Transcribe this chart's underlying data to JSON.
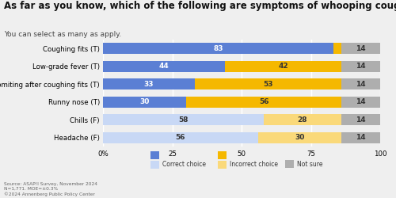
{
  "title": "As far as you know, which of the following are symptoms of whooping cough?",
  "subtitle": "You can select as many as apply.",
  "categories": [
    "Coughing fits (T)",
    "Low-grade fever (T)",
    "Vomiting after coughing fits (T)",
    "Runny nose (T)",
    "Chills (F)",
    "Headache (F)"
  ],
  "correct": [
    83,
    44,
    33,
    30,
    58,
    56
  ],
  "incorrect": [
    3,
    42,
    53,
    56,
    28,
    30
  ],
  "not_sure": [
    14,
    14,
    14,
    14,
    14,
    14
  ],
  "correct_true_color": "#5B7FD4",
  "correct_false_color": "#C8D8F5",
  "incorrect_true_color": "#F5B800",
  "incorrect_false_color": "#FAD97A",
  "not_sure_color": "#AEAEAE",
  "background_color": "#EFEFEF",
  "title_fontsize": 8.5,
  "subtitle_fontsize": 6.5,
  "label_fontsize": 6.2,
  "bar_label_fontsize": 6.5,
  "footer_text": "Source: ASAP!I Survey, November 2024\nN=1,771. MOE=±0.3%\n©2024 Annenberg Public Policy Center",
  "legend_labels": [
    "Correct choice",
    "Incorrect choice",
    "Not sure"
  ],
  "xlim": [
    0,
    100
  ],
  "xticks": [
    0,
    25,
    50,
    75,
    100
  ],
  "xticklabels": [
    "0%",
    "25",
    "50",
    "75",
    "100"
  ]
}
